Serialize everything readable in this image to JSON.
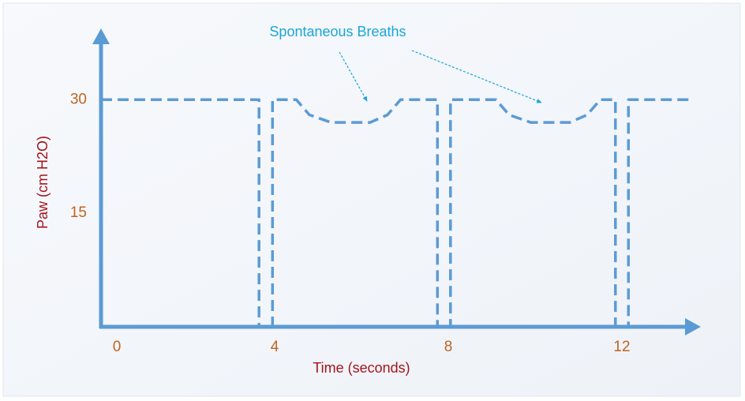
{
  "chart_data": {
    "type": "line",
    "xlabel": "Time (seconds)",
    "ylabel": "Paw (cm H2O)",
    "annotation": "Spontaneous Breaths",
    "color": "#5b9bd5",
    "line_style": "dashed",
    "x": [
      0,
      3.64,
      3.64,
      3.95,
      3.95,
      4.5,
      4.8,
      5.3,
      6.2,
      6.6,
      6.9,
      7.75,
      7.75,
      8.05,
      8.05,
      9.1,
      9.4,
      9.9,
      10.8,
      11.2,
      11.5,
      11.85,
      11.85,
      12.15,
      12.15,
      13.6
    ],
    "values": [
      30,
      30,
      0,
      0,
      30,
      30,
      28,
      27,
      27,
      28,
      30,
      30,
      0,
      0,
      30,
      30,
      28,
      27,
      27,
      28,
      30,
      30,
      0,
      0,
      30,
      30
    ],
    "xlim": [
      0,
      13.8
    ],
    "xticks": [
      0,
      4,
      8,
      12
    ],
    "ylim": [
      0,
      39
    ],
    "yticks": [
      15,
      30
    ],
    "grid": false
  }
}
